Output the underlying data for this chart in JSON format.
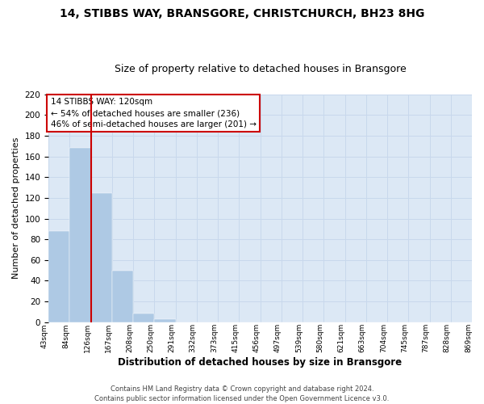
{
  "title": "14, STIBBS WAY, BRANSGORE, CHRISTCHURCH, BH23 8HG",
  "subtitle": "Size of property relative to detached houses in Bransgore",
  "xlabel": "Distribution of detached houses by size in Bransgore",
  "ylabel": "Number of detached properties",
  "bar_values": [
    88,
    168,
    125,
    50,
    8,
    3,
    0,
    0,
    0,
    0,
    0,
    0,
    0,
    0,
    0,
    0,
    0,
    0,
    0,
    0
  ],
  "bar_labels": [
    "43sqm",
    "84sqm",
    "126sqm",
    "167sqm",
    "208sqm",
    "250sqm",
    "291sqm",
    "332sqm",
    "373sqm",
    "415sqm",
    "456sqm",
    "497sqm",
    "539sqm",
    "580sqm",
    "621sqm",
    "663sqm",
    "704sqm",
    "745sqm",
    "787sqm",
    "828sqm",
    "869sqm"
  ],
  "bar_color": "#aec9e4",
  "marker_line_color": "#cc0000",
  "ylim": [
    0,
    220
  ],
  "yticks": [
    0,
    20,
    40,
    60,
    80,
    100,
    120,
    140,
    160,
    180,
    200,
    220
  ],
  "annotation_line1": "14 STIBBS WAY: 120sqm",
  "annotation_line2": "← 54% of detached houses are smaller (236)",
  "annotation_line3": "46% of semi-detached houses are larger (201) →",
  "footer_line1": "Contains HM Land Registry data © Crown copyright and database right 2024.",
  "footer_line2": "Contains public sector information licensed under the Open Government Licence v3.0.",
  "grid_color": "#c8d8ec",
  "background_color": "#dce8f5",
  "figsize": [
    6.0,
    5.0
  ],
  "dpi": 100
}
